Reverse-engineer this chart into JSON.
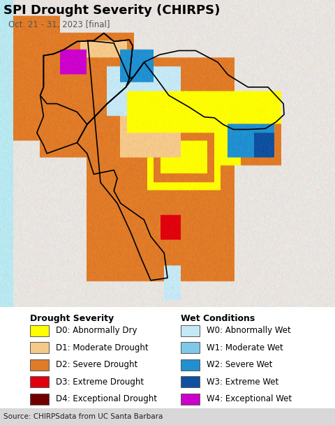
{
  "title": "SPI Drought Severity (CHIRPS)",
  "subtitle": "Oct. 21 - 31, 2023 [final]",
  "source_text": "Source: CHIRPSdata from UC Santa Barbara",
  "background_color": "#ffffff",
  "ocean_color": "#b8e8f0",
  "land_bg_color": "#e8e4e0",
  "border_color": "#000000",
  "drought_categories": [
    {
      "code": "D0",
      "label": "D0: Abnormally Dry",
      "color": "#ffff00"
    },
    {
      "code": "D1",
      "label": "D1: Moderate Drought",
      "color": "#f5c98a"
    },
    {
      "code": "D2",
      "label": "D2: Severe Drought",
      "color": "#e07b28"
    },
    {
      "code": "D3",
      "label": "D3: Extreme Drought",
      "color": "#e0000e"
    },
    {
      "code": "D4",
      "label": "D4: Exceptional Drought",
      "color": "#720000"
    }
  ],
  "wet_categories": [
    {
      "code": "W0",
      "label": "W0: Abnormally Wet",
      "color": "#c5e8f5"
    },
    {
      "code": "W1",
      "label": "W1: Moderate Wet",
      "color": "#7ec8e8"
    },
    {
      "code": "W2",
      "label": "W2: Severe Wet",
      "color": "#2090d0"
    },
    {
      "code": "W3",
      "label": "W3: Extreme Wet",
      "color": "#1050a0"
    },
    {
      "code": "W4",
      "label": "W4: Exceptional Wet",
      "color": "#cc00cc"
    }
  ],
  "legend_title_drought": "Drought Severity",
  "legend_title_wet": "Wet Conditions",
  "title_fontsize": 13,
  "subtitle_fontsize": 8.5,
  "legend_fontsize": 8.5,
  "source_fontsize": 7.5,
  "figsize": [
    4.8,
    6.09
  ],
  "dpi": 100,
  "map_extent": [
    55,
    105,
    5,
    42
  ]
}
